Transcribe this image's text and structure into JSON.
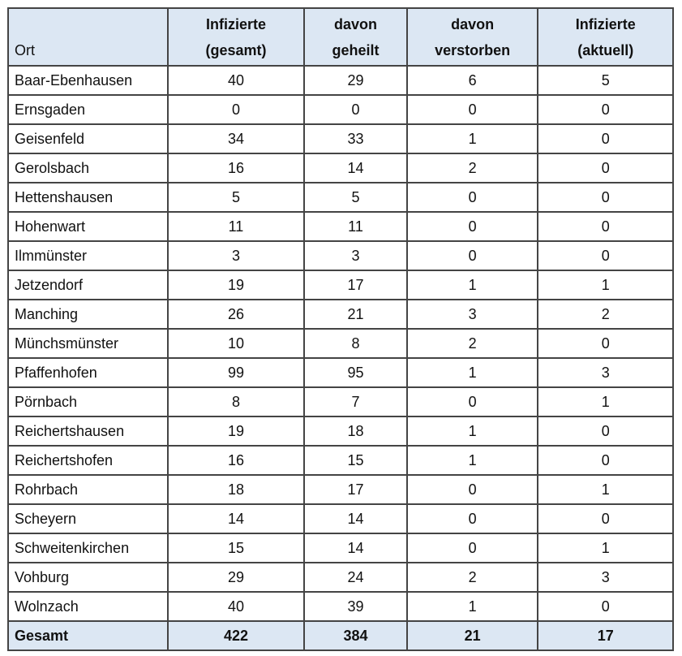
{
  "headers": [
    "Ort",
    "Infizierte (gesamt)",
    "davon geheilt",
    "davon verstorben",
    "Infizierte (aktuell)"
  ],
  "header_lines": [
    [
      "Ort"
    ],
    [
      "Infizierte",
      "(gesamt)"
    ],
    [
      "davon",
      "geheilt"
    ],
    [
      "davon",
      "verstorben"
    ],
    [
      "Infizierte",
      "(aktuell)"
    ]
  ],
  "rows": [
    [
      "Baar-Ebenhausen",
      "40",
      "29",
      "6",
      "5"
    ],
    [
      "Ernsgaden",
      "0",
      "0",
      "0",
      "0"
    ],
    [
      "Geisenfeld",
      "34",
      "33",
      "1",
      "0"
    ],
    [
      "Gerolsbach",
      "16",
      "14",
      "2",
      "0"
    ],
    [
      "Hettenshausen",
      "5",
      "5",
      "0",
      "0"
    ],
    [
      "Hohenwart",
      "11",
      "11",
      "0",
      "0"
    ],
    [
      "Ilmmünster",
      "3",
      "3",
      "0",
      "0"
    ],
    [
      "Jetzendorf",
      "19",
      "17",
      "1",
      "1"
    ],
    [
      "Manching",
      "26",
      "21",
      "3",
      "2"
    ],
    [
      "Münchsmünster",
      "10",
      "8",
      "2",
      "0"
    ],
    [
      "Pfaffenhofen",
      "99",
      "95",
      "1",
      "3"
    ],
    [
      "Pörnbach",
      "8",
      "7",
      "0",
      "1"
    ],
    [
      "Reichertshausen",
      "19",
      "18",
      "1",
      "0"
    ],
    [
      "Reichertshofen",
      "16",
      "15",
      "1",
      "0"
    ],
    [
      "Rohrbach",
      "18",
      "17",
      "0",
      "1"
    ],
    [
      "Scheyern",
      "14",
      "14",
      "0",
      "0"
    ],
    [
      "Schweitenkirchen",
      "15",
      "14",
      "0",
      "1"
    ],
    [
      "Vohburg",
      "29",
      "24",
      "2",
      "3"
    ],
    [
      "Wolnzach",
      "40",
      "39",
      "1",
      "0"
    ]
  ],
  "total": [
    "Gesamt",
    "422",
    "384",
    "21",
    "17"
  ],
  "colors": {
    "header_bg": "#dce7f3",
    "border": "#444444"
  }
}
